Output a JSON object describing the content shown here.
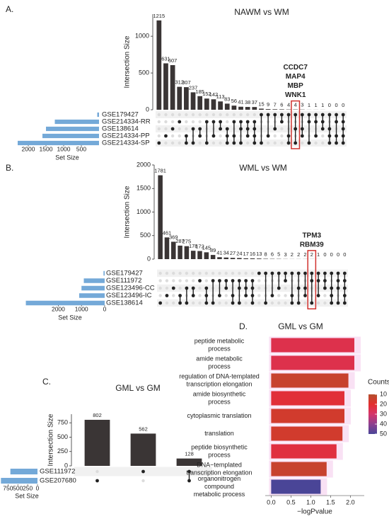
{
  "chart_data": [
    {
      "type": "upset",
      "panel": "A.",
      "title": "NAWM vs WM",
      "ylabel": "Intersection Size",
      "values": [
        1215,
        631,
        607,
        312,
        307,
        237,
        185,
        152,
        142,
        113,
        83,
        56,
        41,
        38,
        37,
        15,
        9,
        7,
        6,
        4,
        4,
        3,
        1,
        1,
        1,
        0,
        0,
        0
      ],
      "ylim": [
        0,
        1300
      ],
      "yticks": [
        0,
        500,
        1000
      ],
      "sets": [
        "GSE179427",
        "GSE214334-RR",
        "GSE138614",
        "GSE214334-PP",
        "GSE214334-SP"
      ],
      "set_sizes": [
        50,
        1250,
        1500,
        1600,
        2300
      ],
      "set_size_lim": [
        0,
        2200
      ],
      "set_size_ticks": [
        2000,
        1500,
        1000,
        500
      ],
      "set_size_label": "Set Size",
      "memberships": [
        [
          4
        ],
        [
          3
        ],
        [
          2
        ],
        [
          1
        ],
        [
          3,
          4
        ],
        [
          2,
          4
        ],
        [
          2,
          3
        ],
        [
          1,
          4
        ],
        [
          1,
          3
        ],
        [
          1,
          2
        ],
        [
          2,
          3,
          4
        ],
        [
          1,
          3,
          4
        ],
        [
          1,
          2,
          4
        ],
        [
          1,
          2,
          3
        ],
        [
          1,
          2,
          3,
          4
        ],
        [
          0,
          4
        ],
        [
          0,
          3
        ],
        [
          0,
          2
        ],
        [
          0,
          1
        ],
        [
          0,
          3,
          4
        ],
        [
          0,
          2,
          4
        ],
        [
          0,
          2,
          3
        ],
        [
          0,
          1,
          4
        ],
        [
          0,
          1,
          3
        ],
        [
          0,
          1,
          2
        ],
        [
          0,
          2,
          3,
          4
        ],
        [
          0,
          1,
          3,
          4
        ],
        [
          0,
          1,
          2,
          3,
          4
        ]
      ],
      "highlight": 20,
      "annotation": [
        "CCDC7",
        "MAP4",
        "MBP",
        "WNK1"
      ],
      "bar_color": "#3a3535",
      "set_color": "#74a9d8",
      "highlight_color": "#d0312d"
    },
    {
      "type": "upset",
      "panel": "B.",
      "title": "WML vs WM",
      "ylabel": "Intersection Size",
      "values": [
        1781,
        461,
        369,
        287,
        275,
        178,
        172,
        145,
        89,
        41,
        34,
        27,
        24,
        17,
        16,
        13,
        8,
        6,
        5,
        3,
        2,
        2,
        2,
        2,
        1,
        0,
        0,
        0,
        0
      ],
      "ylim": [
        0,
        2000
      ],
      "yticks": [
        0,
        500,
        1000,
        1500,
        2000
      ],
      "sets": [
        "GSE179427",
        "GSE111972",
        "GSE123496-CC",
        "GSE123496-IC",
        "GSE138614"
      ],
      "set_sizes": [
        50,
        900,
        1000,
        1100,
        3400
      ],
      "set_size_lim": [
        0,
        3600
      ],
      "set_size_ticks": [
        2000,
        1000,
        0
      ],
      "set_size_label": "Set Size",
      "memberships": [
        [
          4
        ],
        [
          3
        ],
        [
          2
        ],
        [
          3,
          4
        ],
        [
          2,
          4
        ],
        [
          2,
          3
        ],
        [
          1
        ],
        [
          2,
          3,
          4
        ],
        [
          1,
          4
        ],
        [
          1,
          3
        ],
        [
          1,
          2
        ],
        [
          1,
          3,
          4
        ],
        [
          1,
          2,
          4
        ],
        [
          1,
          2,
          3
        ],
        [
          1,
          2,
          3,
          4
        ],
        [
          0
        ],
        [
          0,
          4
        ],
        [
          0,
          3
        ],
        [
          0,
          2
        ],
        [
          0,
          1
        ],
        [
          0,
          3,
          4
        ],
        [
          0,
          2,
          4
        ],
        [
          0,
          2,
          3
        ],
        [
          0,
          1,
          4
        ],
        [
          0,
          1,
          3
        ],
        [
          0,
          1,
          2
        ],
        [
          0,
          2,
          3,
          4
        ],
        [
          0,
          1,
          2,
          4
        ],
        [
          0,
          1,
          2,
          3,
          4
        ]
      ],
      "highlight": 23,
      "annotation": [
        "TPM3",
        "RBM39"
      ],
      "bar_color": "#3a3535",
      "set_color": "#74a9d8",
      "highlight_color": "#d0312d"
    },
    {
      "type": "upset",
      "panel": "C.",
      "title": "GML vs GM",
      "ylabel": "Intersection Size",
      "values": [
        802,
        562,
        128
      ],
      "ylim": [
        0,
        900
      ],
      "yticks": [
        0,
        250,
        500,
        750
      ],
      "sets": [
        "GSE111972",
        "GSE207680"
      ],
      "set_sizes": [
        690,
        930
      ],
      "set_size_lim": [
        0,
        900
      ],
      "set_size_ticks": [
        750,
        500,
        250,
        0
      ],
      "set_size_label": "Set Size",
      "memberships": [
        [
          1
        ],
        [
          0
        ],
        [
          0,
          1
        ]
      ],
      "bar_color": "#3a3535",
      "set_color": "#74a9d8"
    },
    {
      "type": "hbar",
      "panel": "D.",
      "title": "GML vs GM",
      "xlabel": "−logPvalue",
      "categories": [
        [
          "peptide metabolic",
          "process"
        ],
        [
          "amide metabolic",
          "process"
        ],
        [
          "regulation of DNA-templated",
          "transcription elongation"
        ],
        [
          "amide biosynthetic",
          "process"
        ],
        [
          "cytoplasmic translation"
        ],
        [
          "translation"
        ],
        [
          "peptide biosynthetic",
          "process"
        ],
        [
          "DNA−templated",
          "transcription elongation"
        ],
        [
          "organonitrogen",
          "compound",
          "metabolic process"
        ]
      ],
      "values": [
        2.1,
        2.1,
        1.95,
        1.85,
        1.85,
        1.8,
        1.65,
        1.4,
        1.25
      ],
      "counts": [
        25,
        25,
        14,
        22,
        16,
        16,
        23,
        14,
        52
      ],
      "xlim": [
        -0.15,
        2.35
      ],
      "xticks": [
        {
          "value": 0,
          "label": "0.0"
        },
        {
          "value": 0.5,
          "label": "0.5"
        },
        {
          "value": 1,
          "label": "1.0"
        },
        {
          "value": 1.5,
          "label": "1.5"
        },
        {
          "value": 2,
          "label": "2.0"
        }
      ],
      "legend_title": "Counts",
      "legend_ticks": [
        10,
        20,
        30,
        40,
        50
      ],
      "clim": [
        5,
        55
      ],
      "colors": [
        "#b4502e",
        "#e42d2d",
        "#d5356b",
        "#8e3f8f",
        "#4a4597"
      ]
    }
  ]
}
